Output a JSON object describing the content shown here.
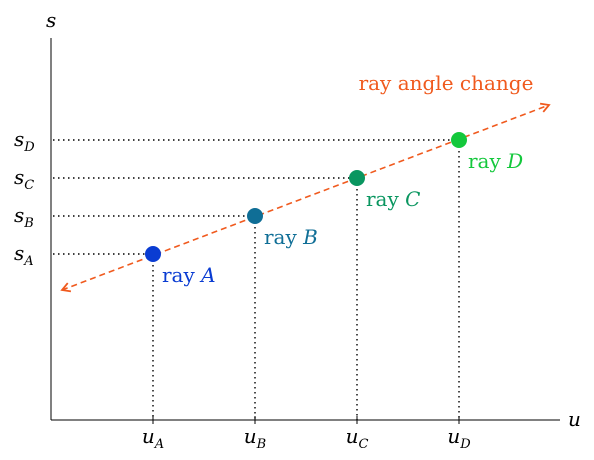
{
  "axes": {
    "x_label": "u",
    "y_label": "s"
  },
  "arrow": {
    "label": "ray angle change",
    "color": "#f05a1e"
  },
  "rays": [
    {
      "name": "A",
      "word": "ray",
      "letter": "A",
      "u": "u",
      "u_sub": "A",
      "s": "s",
      "s_sub": "A",
      "color": "#0a3cd2"
    },
    {
      "name": "B",
      "word": "ray",
      "letter": "B",
      "u": "u",
      "u_sub": "B",
      "s": "s",
      "s_sub": "B",
      "color": "#0f6e96"
    },
    {
      "name": "C",
      "word": "ray",
      "letter": "C",
      "u": "u",
      "u_sub": "C",
      "s": "s",
      "s_sub": "C",
      "color": "#0a9660"
    },
    {
      "name": "D",
      "word": "ray",
      "letter": "D",
      "u": "u",
      "u_sub": "D",
      "s": "s",
      "s_sub": "D",
      "color": "#14c83c"
    }
  ]
}
